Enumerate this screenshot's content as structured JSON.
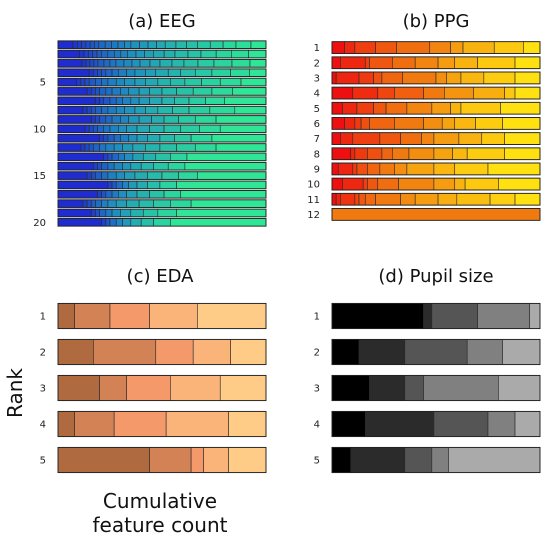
{
  "figure": {
    "ylabel": "Rank",
    "xlabel_lines": [
      "Cumulative",
      "feature count"
    ]
  },
  "chart_data": [
    {
      "id": "eeg",
      "type": "bar",
      "orientation": "horizontal",
      "stacked": true,
      "title": "(a) EEG",
      "ranks": 20,
      "ytick_labels": [
        {
          "rank": 5,
          "label": "5"
        },
        {
          "rank": 10,
          "label": "10"
        },
        {
          "rank": 15,
          "label": "15"
        },
        {
          "rank": 20,
          "label": "20"
        }
      ],
      "colormap": [
        "#1e2cd0",
        "#1e8fc0",
        "#2ee696"
      ],
      "rows": [
        [
          0.07,
          0.02,
          0.02,
          0.02,
          0.02,
          0.02,
          0.02,
          0.03,
          0.03,
          0.03,
          0.03,
          0.03,
          0.04,
          0.04,
          0.04,
          0.04,
          0.05,
          0.05,
          0.05,
          0.06,
          0.06,
          0.06,
          0.07,
          0.07
        ],
        [
          0.1,
          0.02,
          0.02,
          0.02,
          0.02,
          0.02,
          0.03,
          0.03,
          0.03,
          0.03,
          0.04,
          0.04,
          0.04,
          0.05,
          0.05,
          0.06,
          0.06,
          0.07,
          0.07,
          0.08,
          0.08
        ],
        [
          0.12,
          0.02,
          0.02,
          0.02,
          0.02,
          0.03,
          0.03,
          0.03,
          0.04,
          0.04,
          0.04,
          0.05,
          0.05,
          0.06,
          0.06,
          0.07,
          0.08,
          0.09,
          0.09,
          0.08
        ],
        [
          0.15,
          0.02,
          0.02,
          0.02,
          0.02,
          0.03,
          0.03,
          0.04,
          0.04,
          0.05,
          0.05,
          0.06,
          0.06,
          0.07,
          0.08,
          0.09,
          0.09,
          0.08
        ],
        [
          0.09,
          0.02,
          0.02,
          0.02,
          0.03,
          0.03,
          0.03,
          0.04,
          0.04,
          0.05,
          0.05,
          0.06,
          0.06,
          0.07,
          0.08,
          0.09,
          0.1,
          0.12
        ],
        [
          0.14,
          0.02,
          0.02,
          0.02,
          0.03,
          0.03,
          0.04,
          0.04,
          0.05,
          0.05,
          0.06,
          0.07,
          0.08,
          0.09,
          0.1,
          0.16
        ],
        [
          0.18,
          0.02,
          0.02,
          0.03,
          0.03,
          0.03,
          0.04,
          0.04,
          0.05,
          0.06,
          0.06,
          0.07,
          0.08,
          0.09,
          0.2
        ],
        [
          0.12,
          0.02,
          0.02,
          0.02,
          0.03,
          0.03,
          0.04,
          0.04,
          0.05,
          0.05,
          0.06,
          0.07,
          0.08,
          0.1,
          0.12,
          0.15
        ],
        [
          0.16,
          0.02,
          0.02,
          0.03,
          0.03,
          0.04,
          0.04,
          0.05,
          0.06,
          0.06,
          0.07,
          0.08,
          0.1,
          0.24
        ],
        [
          0.13,
          0.02,
          0.02,
          0.02,
          0.03,
          0.03,
          0.04,
          0.04,
          0.05,
          0.06,
          0.07,
          0.08,
          0.09,
          0.1,
          0.22
        ],
        [
          0.2,
          0.02,
          0.02,
          0.03,
          0.03,
          0.04,
          0.04,
          0.05,
          0.06,
          0.07,
          0.08,
          0.1,
          0.26
        ],
        [
          0.11,
          0.02,
          0.02,
          0.02,
          0.03,
          0.03,
          0.04,
          0.04,
          0.05,
          0.06,
          0.07,
          0.08,
          0.09,
          0.1,
          0.24
        ],
        [
          0.22,
          0.02,
          0.02,
          0.03,
          0.03,
          0.04,
          0.05,
          0.06,
          0.07,
          0.08,
          0.38
        ],
        [
          0.17,
          0.02,
          0.02,
          0.03,
          0.03,
          0.04,
          0.04,
          0.05,
          0.06,
          0.07,
          0.08,
          0.39
        ],
        [
          0.14,
          0.02,
          0.02,
          0.03,
          0.03,
          0.04,
          0.04,
          0.05,
          0.06,
          0.07,
          0.08,
          0.09,
          0.33
        ],
        [
          0.24,
          0.02,
          0.02,
          0.03,
          0.03,
          0.04,
          0.05,
          0.06,
          0.08,
          0.43
        ],
        [
          0.19,
          0.02,
          0.02,
          0.03,
          0.03,
          0.04,
          0.05,
          0.06,
          0.07,
          0.08,
          0.41
        ],
        [
          0.12,
          0.02,
          0.02,
          0.02,
          0.03,
          0.03,
          0.04,
          0.05,
          0.06,
          0.07,
          0.08,
          0.1,
          0.36
        ],
        [
          0.16,
          0.02,
          0.02,
          0.03,
          0.03,
          0.04,
          0.05,
          0.06,
          0.07,
          0.09,
          0.43
        ],
        [
          0.21,
          0.02,
          0.02,
          0.03,
          0.03,
          0.04,
          0.05,
          0.06,
          0.08,
          0.46
        ]
      ]
    },
    {
      "id": "ppg",
      "type": "bar",
      "orientation": "horizontal",
      "stacked": true,
      "title": "(b) PPG",
      "ranks": 12,
      "ytick_labels": [
        {
          "rank": 1,
          "label": "1"
        },
        {
          "rank": 2,
          "label": "2"
        },
        {
          "rank": 3,
          "label": "3"
        },
        {
          "rank": 4,
          "label": "4"
        },
        {
          "rank": 5,
          "label": "5"
        },
        {
          "rank": 6,
          "label": "6"
        },
        {
          "rank": 7,
          "label": "7"
        },
        {
          "rank": 8,
          "label": "8"
        },
        {
          "rank": 9,
          "label": "9"
        },
        {
          "rank": 10,
          "label": "10"
        },
        {
          "rank": 11,
          "label": "11"
        },
        {
          "rank": 12,
          "label": "12"
        }
      ],
      "colormap": [
        "#ee1010",
        "#f07a10",
        "#ffe010"
      ],
      "rows": [
        [
          0.06,
          0.05,
          0.1,
          0.1,
          0.16,
          0.1,
          0.06,
          0.15,
          0.14,
          0.08
        ],
        [
          0.04,
          0.12,
          0.02,
          0.11,
          0.11,
          0.11,
          0.08,
          0.11,
          0.18,
          0.12
        ],
        [
          0.02,
          0.11,
          0.07,
          0.04,
          0.1,
          0.16,
          0.05,
          0.07,
          0.11,
          0.15,
          0.12
        ],
        [
          0.1,
          0.12,
          0.08,
          0.14,
          0.1,
          0.14,
          0.15,
          0.05,
          0.12
        ],
        [
          0.05,
          0.07,
          0.08,
          0.06,
          0.1,
          0.12,
          0.09,
          0.05,
          0.19,
          0.19
        ],
        [
          0.06,
          0.05,
          0.03,
          0.04,
          0.12,
          0.14,
          0.09,
          0.06,
          0.1,
          0.13,
          0.18
        ],
        [
          0.04,
          0.06,
          0.13,
          0.1,
          0.1,
          0.06,
          0.12,
          0.11,
          0.11,
          0.17
        ],
        [
          0.09,
          0.02,
          0.06,
          0.07,
          0.05,
          0.08,
          0.12,
          0.09,
          0.07,
          0.18,
          0.17
        ],
        [
          0.03,
          0.07,
          0.02,
          0.05,
          0.06,
          0.07,
          0.06,
          0.13,
          0.1,
          0.16,
          0.25
        ],
        [
          0.05,
          0.1,
          0.02,
          0.05,
          0.1,
          0.17,
          0.1,
          0.05,
          0.16,
          0.2
        ],
        [
          0.02,
          0.02,
          0.07,
          0.02,
          0.03,
          0.05,
          0.12,
          0.07,
          0.11,
          0.09,
          0.16,
          0.12,
          0.12
        ],
        [
          1.0
        ]
      ]
    },
    {
      "id": "eda",
      "type": "bar",
      "orientation": "horizontal",
      "stacked": true,
      "title": "(c) EDA",
      "ranks": 5,
      "ytick_labels": [
        {
          "rank": 1,
          "label": "1"
        },
        {
          "rank": 2,
          "label": "2"
        },
        {
          "rank": 3,
          "label": "3"
        },
        {
          "rank": 4,
          "label": "4"
        },
        {
          "rank": 5,
          "label": "5"
        }
      ],
      "colormap": [
        "#b06a40",
        "#f49a6a",
        "#ffcc88"
      ],
      "rows": [
        [
          0.08,
          0.17,
          0.19,
          0.23,
          0.33
        ],
        [
          0.17,
          0.3,
          0.18,
          0.18,
          0.17
        ],
        [
          0.2,
          0.13,
          0.21,
          0.24,
          0.22
        ],
        [
          0.08,
          0.19,
          0.25,
          0.3,
          0.18
        ],
        [
          0.44,
          0.2,
          0.06,
          0.12,
          0.18
        ]
      ]
    },
    {
      "id": "pupil",
      "type": "bar",
      "orientation": "horizontal",
      "stacked": true,
      "title": "(d) Pupil size",
      "ranks": 5,
      "ytick_labels": [
        {
          "rank": 1,
          "label": "1"
        },
        {
          "rank": 2,
          "label": "2"
        },
        {
          "rank": 3,
          "label": "3"
        },
        {
          "rank": 4,
          "label": "4"
        },
        {
          "rank": 5,
          "label": "5"
        }
      ],
      "colormap": [
        "#000000",
        "#555555",
        "#aaaaaa"
      ],
      "rows": [
        [
          0.44,
          0.04,
          0.22,
          0.25,
          0.05
        ],
        [
          0.13,
          0.22,
          0.3,
          0.17,
          0.18
        ],
        [
          0.18,
          0.17,
          0.09,
          0.36,
          0.2
        ],
        [
          0.16,
          0.33,
          0.26,
          0.13,
          0.12
        ],
        [
          0.09,
          0.26,
          0.13,
          0.08,
          0.44
        ]
      ]
    }
  ]
}
